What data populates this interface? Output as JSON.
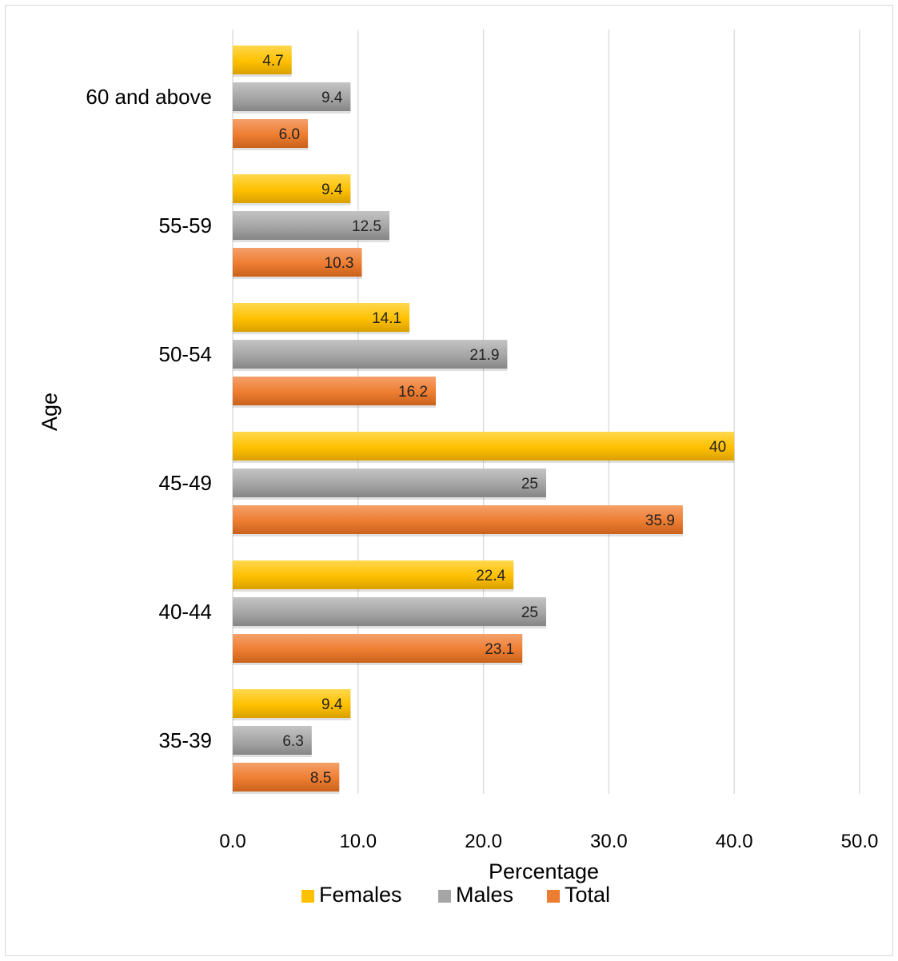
{
  "chart_data": {
    "type": "bar",
    "orientation": "horizontal",
    "categories": [
      "60 and above",
      "55-59",
      "50-54",
      "45-49",
      "40-44",
      "35-39"
    ],
    "series": [
      {
        "name": "Females",
        "color": "#ffc000",
        "values": [
          4.7,
          9.4,
          14.1,
          40,
          22.4,
          9.4
        ],
        "labels": [
          "4.7",
          "9.4",
          "14.1",
          "40",
          "22.4",
          "9.4"
        ]
      },
      {
        "name": "Males",
        "color": "#a5a5a5",
        "values": [
          9.4,
          12.5,
          21.9,
          25,
          25,
          6.3
        ],
        "labels": [
          "9.4",
          "12.5",
          "21.9",
          "25",
          "25",
          "6.3"
        ]
      },
      {
        "name": "Total",
        "color": "#ed7d31",
        "values": [
          6.0,
          10.3,
          16.2,
          35.9,
          23.1,
          8.5
        ],
        "labels": [
          "6.0",
          "10.3",
          "16.2",
          "35.9",
          "23.1",
          "8.5"
        ]
      }
    ],
    "xlabel": "Percentage",
    "ylabel": "Age",
    "xlim": [
      0,
      50
    ],
    "xticks": [
      "0.0",
      "10.0",
      "20.0",
      "30.0",
      "40.0",
      "50.0"
    ],
    "grid": "vertical",
    "legend": "bottom"
  }
}
